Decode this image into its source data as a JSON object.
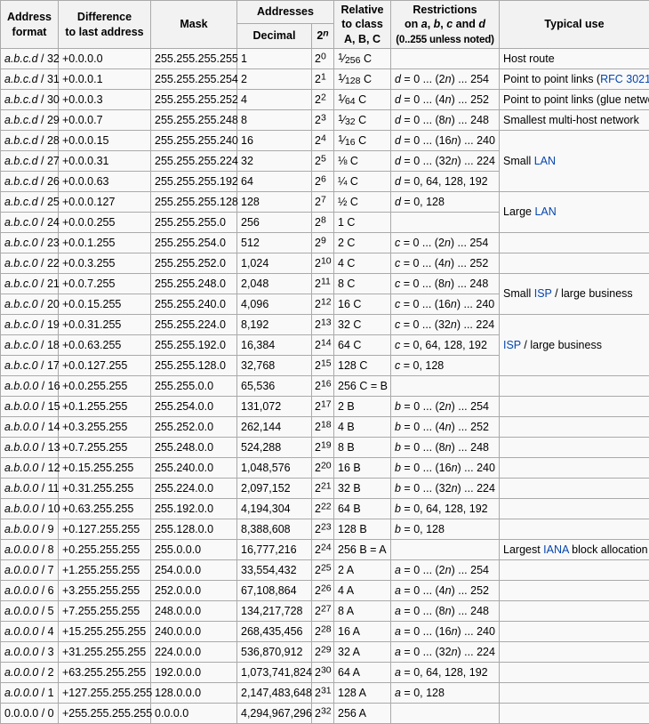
{
  "colors": {
    "link_blue": "#0645ad",
    "border": "#aaaaaa",
    "header_bg": "#f2f2f2",
    "cell_bg": "#f9f9f9"
  },
  "icons": {
    "external_link": "external-link-icon"
  },
  "header": {
    "address_format": [
      "Address",
      "format"
    ],
    "difference": [
      "Difference",
      "to last address"
    ],
    "mask": "Mask",
    "addresses": "Addresses",
    "decimal": "Decimal",
    "exp_base": "2",
    "exp_sup": "n",
    "relative": [
      "Relative",
      "to class",
      "A, B, C"
    ],
    "restrictions": [
      "Restrictions",
      "on a, b, c and d",
      "(0..255 unless noted)"
    ],
    "typical_use": "Typical use"
  },
  "rows": [
    {
      "format": "a.b.c.d / 32",
      "diff": "+0.0.0.0",
      "mask": "255.255.255.255",
      "decimal": "1",
      "exp": "0",
      "relative": "1/256 C",
      "restriction": "",
      "use": {
        "pre": "Host route"
      },
      "span": 1
    },
    {
      "format": "a.b.c.d / 31",
      "diff": "+0.0.0.1",
      "mask": "255.255.255.254",
      "decimal": "2",
      "exp": "1",
      "relative": "1/128 C",
      "restriction": "d = 0 ... (2n) ... 254",
      "use": {
        "pre": "Point to point links (",
        "link": "RFC 3021",
        "ext": true,
        "post": ")"
      },
      "span": 1
    },
    {
      "format": "a.b.c.d / 30",
      "diff": "+0.0.0.3",
      "mask": "255.255.255.252",
      "decimal": "4",
      "exp": "2",
      "relative": "1/64 C",
      "restriction": "d = 0 ... (4n) ... 252",
      "use": {
        "pre": "Point to point links (glue network)"
      },
      "span": 1
    },
    {
      "format": "a.b.c.d / 29",
      "diff": "+0.0.0.7",
      "mask": "255.255.255.248",
      "decimal": "8",
      "exp": "3",
      "relative": "1/32 C",
      "restriction": "d = 0 ... (8n) ... 248",
      "use": {
        "pre": "Smallest multi-host network"
      },
      "span": 1
    },
    {
      "format": "a.b.c.d / 28",
      "diff": "+0.0.0.15",
      "mask": "255.255.255.240",
      "decimal": "16",
      "exp": "4",
      "relative": "1/16 C",
      "restriction": "d = 0 ... (16n) ... 240",
      "use": {
        "pre": "Small ",
        "link": "LAN"
      },
      "span": 3
    },
    {
      "format": "a.b.c.d / 27",
      "diff": "+0.0.0.31",
      "mask": "255.255.255.224",
      "decimal": "32",
      "exp": "5",
      "relative": "⅛ C",
      "restriction": "d = 0 ... (32n) ... 224"
    },
    {
      "format": "a.b.c.d / 26",
      "diff": "+0.0.0.63",
      "mask": "255.255.255.192",
      "decimal": "64",
      "exp": "6",
      "relative": "¼ C",
      "restriction": "d = 0, 64, 128, 192"
    },
    {
      "format": "a.b.c.d / 25",
      "diff": "+0.0.0.127",
      "mask": "255.255.255.128",
      "decimal": "128",
      "exp": "7",
      "relative": "½ C",
      "restriction": "d = 0, 128",
      "use": {
        "pre": "Large ",
        "link": "LAN"
      },
      "span": 2
    },
    {
      "format": "a.b.c.0 / 24",
      "diff": "+0.0.0.255",
      "mask": "255.255.255.0",
      "decimal": "256",
      "exp": "8",
      "relative": "1 C",
      "restriction": ""
    },
    {
      "format": "a.b.c.0 / 23",
      "diff": "+0.0.1.255",
      "mask": "255.255.254.0",
      "decimal": "512",
      "exp": "9",
      "relative": "2 C",
      "restriction": "c = 0 ... (2n) ... 254",
      "use": {},
      "span": 1
    },
    {
      "format": "a.b.c.0 / 22",
      "diff": "+0.0.3.255",
      "mask": "255.255.252.0",
      "decimal": "1,024",
      "exp": "10",
      "relative": "4 C",
      "restriction": "c = 0 ... (4n) ... 252",
      "use": {},
      "span": 1
    },
    {
      "format": "a.b.c.0 / 21",
      "diff": "+0.0.7.255",
      "mask": "255.255.248.0",
      "decimal": "2,048",
      "exp": "11",
      "relative": "8 C",
      "restriction": "c = 0 ... (8n) ... 248",
      "use": {
        "pre": "Small ",
        "link": "ISP",
        "post": " / large business"
      },
      "span": 2
    },
    {
      "format": "a.b.c.0 / 20",
      "diff": "+0.0.15.255",
      "mask": "255.255.240.0",
      "decimal": "4,096",
      "exp": "12",
      "relative": "16 C",
      "restriction": "c = 0 ... (16n) ... 240"
    },
    {
      "format": "a.b.c.0 / 19",
      "diff": "+0.0.31.255",
      "mask": "255.255.224.0",
      "decimal": "8,192",
      "exp": "13",
      "relative": "32 C",
      "restriction": "c = 0 ... (32n) ... 224",
      "use": {
        "link": "ISP",
        "post": " / large business"
      },
      "span": 3
    },
    {
      "format": "a.b.c.0 / 18",
      "diff": "+0.0.63.255",
      "mask": "255.255.192.0",
      "decimal": "16,384",
      "exp": "14",
      "relative": "64 C",
      "restriction": "c = 0, 64, 128, 192"
    },
    {
      "format": "a.b.c.0 / 17",
      "diff": "+0.0.127.255",
      "mask": "255.255.128.0",
      "decimal": "32,768",
      "exp": "15",
      "relative": "128 C",
      "restriction": "c = 0, 128"
    },
    {
      "format": "a.b.0.0 / 16",
      "diff": "+0.0.255.255",
      "mask": "255.255.0.0",
      "decimal": "65,536",
      "exp": "16",
      "relative": "256 C = B",
      "restriction": "",
      "use": {},
      "span": 1
    },
    {
      "format": "a.b.0.0 / 15",
      "diff": "+0.1.255.255",
      "mask": "255.254.0.0",
      "decimal": "131,072",
      "exp": "17",
      "relative": "2 B",
      "restriction": "b = 0 ... (2n) ... 254",
      "use": {},
      "span": 1
    },
    {
      "format": "a.b.0.0 / 14",
      "diff": "+0.3.255.255",
      "mask": "255.252.0.0",
      "decimal": "262,144",
      "exp": "18",
      "relative": "4 B",
      "restriction": "b = 0 ... (4n) ... 252",
      "use": {},
      "span": 1
    },
    {
      "format": "a.b.0.0 / 13",
      "diff": "+0.7.255.255",
      "mask": "255.248.0.0",
      "decimal": "524,288",
      "exp": "19",
      "relative": "8 B",
      "restriction": "b = 0 ... (8n) ... 248",
      "use": {},
      "span": 1
    },
    {
      "format": "a.b.0.0 / 12",
      "diff": "+0.15.255.255",
      "mask": "255.240.0.0",
      "decimal": "1,048,576",
      "exp": "20",
      "relative": "16 B",
      "restriction": "b = 0 ... (16n) ... 240",
      "use": {},
      "span": 1
    },
    {
      "format": "a.b.0.0 / 11",
      "diff": "+0.31.255.255",
      "mask": "255.224.0.0",
      "decimal": "2,097,152",
      "exp": "21",
      "relative": "32 B",
      "restriction": "b = 0 ... (32n) ... 224",
      "use": {},
      "span": 1
    },
    {
      "format": "a.b.0.0 / 10",
      "diff": "+0.63.255.255",
      "mask": "255.192.0.0",
      "decimal": "4,194,304",
      "exp": "22",
      "relative": "64 B",
      "restriction": "b = 0, 64, 128, 192",
      "use": {},
      "span": 1
    },
    {
      "format": "a.b.0.0 / 9",
      "diff": "+0.127.255.255",
      "mask": "255.128.0.0",
      "decimal": "8,388,608",
      "exp": "23",
      "relative": "128 B",
      "restriction": "b = 0, 128",
      "use": {},
      "span": 1
    },
    {
      "format": "a.0.0.0 / 8",
      "diff": "+0.255.255.255",
      "mask": "255.0.0.0",
      "decimal": "16,777,216",
      "exp": "24",
      "relative": "256 B = A",
      "restriction": "",
      "use": {
        "pre": "Largest ",
        "link": "IANA",
        "post": " block allocation"
      },
      "span": 1
    },
    {
      "format": "a.0.0.0 / 7",
      "diff": "+1.255.255.255",
      "mask": "254.0.0.0",
      "decimal": "33,554,432",
      "exp": "25",
      "relative": "2 A",
      "restriction": "a = 0 ... (2n) ... 254",
      "use": {},
      "span": 1
    },
    {
      "format": "a.0.0.0 / 6",
      "diff": "+3.255.255.255",
      "mask": "252.0.0.0",
      "decimal": "67,108,864",
      "exp": "26",
      "relative": "4 A",
      "restriction": "a = 0 ... (4n) ... 252",
      "use": {},
      "span": 1
    },
    {
      "format": "a.0.0.0 / 5",
      "diff": "+7.255.255.255",
      "mask": "248.0.0.0",
      "decimal": "134,217,728",
      "exp": "27",
      "relative": "8 A",
      "restriction": "a = 0 ... (8n) ... 248",
      "use": {},
      "span": 1
    },
    {
      "format": "a.0.0.0 / 4",
      "diff": "+15.255.255.255",
      "mask": "240.0.0.0",
      "decimal": "268,435,456",
      "exp": "28",
      "relative": "16 A",
      "restriction": "a = 0 ... (16n) ... 240",
      "use": {},
      "span": 1
    },
    {
      "format": "a.0.0.0 / 3",
      "diff": "+31.255.255.255",
      "mask": "224.0.0.0",
      "decimal": "536,870,912",
      "exp": "29",
      "relative": "32 A",
      "restriction": "a = 0 ... (32n) ... 224",
      "use": {},
      "span": 1
    },
    {
      "format": "a.0.0.0 / 2",
      "diff": "+63.255.255.255",
      "mask": "192.0.0.0",
      "decimal": "1,073,741,824",
      "exp": "30",
      "relative": "64 A",
      "restriction": "a = 0, 64, 128, 192",
      "use": {},
      "span": 1
    },
    {
      "format": "a.0.0.0 / 1",
      "diff": "+127.255.255.255",
      "mask": "128.0.0.0",
      "decimal": "2,147,483,648",
      "exp": "31",
      "relative": "128 A",
      "restriction": "a = 0, 128",
      "use": {},
      "span": 1
    },
    {
      "format": "0.0.0.0 / 0",
      "diff": "+255.255.255.255",
      "mask": "0.0.0.0",
      "decimal": "4,294,967,296",
      "exp": "32",
      "relative": "256 A",
      "restriction": "",
      "use": {},
      "span": 1
    }
  ]
}
